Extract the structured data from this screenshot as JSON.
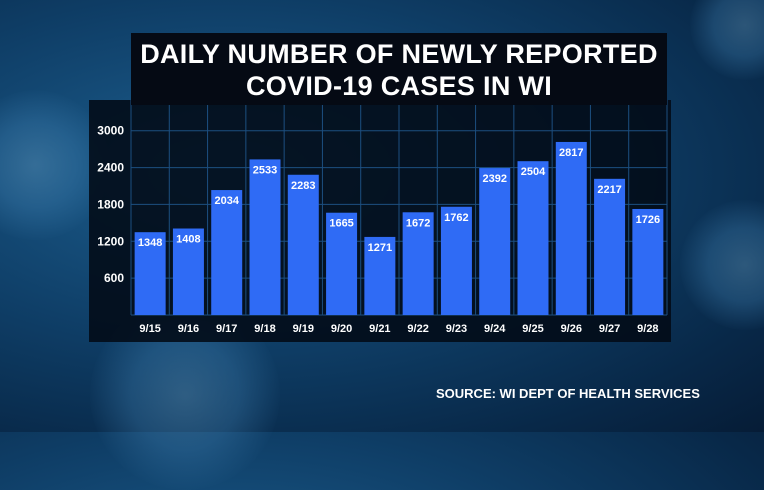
{
  "title_line1": "DAILY NUMBER OF NEWLY REPORTED",
  "title_line2": "COVID-19 CASES IN WI",
  "source": "SOURCE: WI DEPT OF HEALTH SERVICES",
  "colors": {
    "bar": "#2f6bf5",
    "title_bg": "#050a14",
    "text": "#ffffff"
  },
  "chart_data": {
    "type": "bar",
    "title": "DAILY NUMBER OF NEWLY REPORTED COVID-19 CASES IN WI",
    "categories": [
      "9/15",
      "9/16",
      "9/17",
      "9/18",
      "9/19",
      "9/20",
      "9/21",
      "9/22",
      "9/23",
      "9/24",
      "9/25",
      "9/26",
      "9/27",
      "9/28"
    ],
    "values": [
      1348,
      1408,
      2034,
      2533,
      2283,
      1665,
      1271,
      1672,
      1762,
      2392,
      2504,
      2817,
      2217,
      1726
    ],
    "yticks": [
      600,
      1200,
      1800,
      2400,
      3000
    ],
    "ylim": [
      0,
      3500
    ],
    "xlabel": "",
    "ylabel": "",
    "grid": true,
    "legend": "none",
    "data_labels": true
  }
}
